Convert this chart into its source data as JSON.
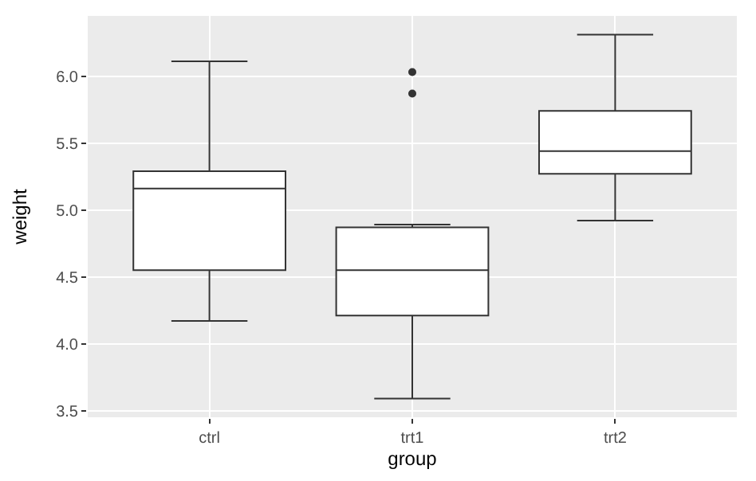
{
  "chart_data": {
    "type": "box",
    "xlabel": "group",
    "ylabel": "weight",
    "categories": [
      "ctrl",
      "trt1",
      "trt2"
    ],
    "boxes": [
      {
        "low": 4.17,
        "q1": 4.55,
        "median": 5.16,
        "q3": 5.29,
        "high": 6.11
      },
      {
        "low": 3.59,
        "q1": 4.21,
        "median": 4.55,
        "q3": 4.87,
        "high": 4.89,
        "outliers": [
          5.87,
          6.03
        ]
      },
      {
        "low": 4.92,
        "q1": 5.27,
        "median": 5.44,
        "q3": 5.74,
        "high": 6.31
      }
    ],
    "ylim": [
      3.45,
      6.45
    ],
    "yticks": [
      3.5,
      {
        "value": 4,
        "label": "4.0"
      },
      4.5,
      {
        "value": 5,
        "label": "5.0"
      },
      5.5,
      {
        "value": 6,
        "label": "6.0"
      }
    ],
    "grid": true
  }
}
